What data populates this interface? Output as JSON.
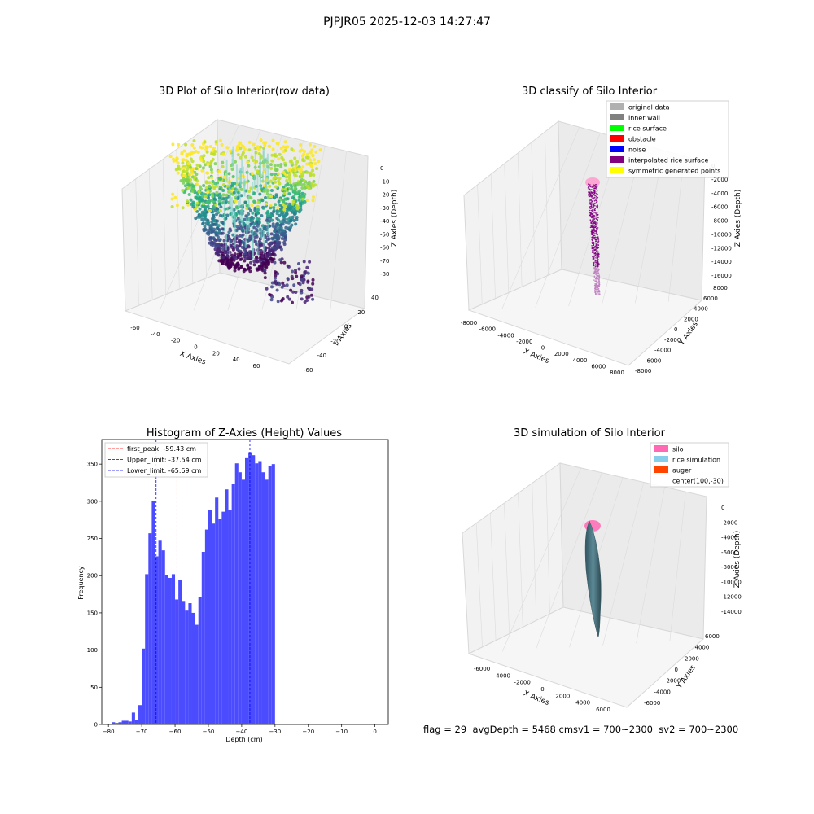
{
  "figure_title": "PJPJR05 2025-12-03 14:27:47",
  "footer": "flag = 29  avgDepth = 5468 cmsv1 = 700~2300  sv2 = 700~2300",
  "panels": {
    "p1": {
      "title": "3D Plot of Silo Interior(row data)",
      "xlabel": "X Axies",
      "ylabel": "Y Axies",
      "zlabel": "Z Axies (Depth)",
      "xticks": [
        "-60",
        "-40",
        "-20",
        "0",
        "20",
        "40",
        "60"
      ],
      "yticks": [
        "-60",
        "-40",
        "-20",
        "0",
        "20",
        "40"
      ],
      "zticks": [
        "0",
        "-10",
        "-20",
        "-30",
        "-40",
        "-50",
        "-60",
        "-70",
        "-80"
      ]
    },
    "p2": {
      "title": "3D classify of Silo Interior",
      "xlabel": "X Axies",
      "ylabel": "Y Axies",
      "zlabel": "Z Axies (Depth)",
      "xticks": [
        "-8000",
        "-6000",
        "-4000",
        "-2000",
        "0",
        "2000",
        "4000",
        "6000",
        "8000"
      ],
      "yticks": [
        "-8000",
        "-6000",
        "-4000",
        "-2000",
        "0",
        "2000",
        "4000",
        "6000",
        "8000"
      ],
      "zticks": [
        "0",
        "-2000",
        "-4000",
        "-6000",
        "-8000",
        "-10000",
        "-12000",
        "-14000",
        "-16000"
      ],
      "legend": [
        {
          "label": "original data",
          "color": "#b0b0b0"
        },
        {
          "label": "inner wall",
          "color": "#808080"
        },
        {
          "label": "rice surface",
          "color": "#00ff00"
        },
        {
          "label": "obstacle",
          "color": "#ff0000"
        },
        {
          "label": "noise",
          "color": "#0000ff"
        },
        {
          "label": "interpolated rice surface",
          "color": "#800080"
        },
        {
          "label": "symmetric generated points",
          "color": "#ffff00"
        }
      ]
    },
    "p4": {
      "title": "3D simulation of Silo Interior",
      "xlabel": "X Axies",
      "ylabel": "Y Axies",
      "zlabel": "Z Axies (Depth)",
      "xticks": [
        "-6000",
        "-4000",
        "-2000",
        "0",
        "2000",
        "4000",
        "6000"
      ],
      "yticks": [
        "-6000",
        "-4000",
        "-2000",
        "0",
        "2000",
        "4000",
        "6000"
      ],
      "zticks": [
        "0",
        "-2000",
        "-4000",
        "-6000",
        "-8000",
        "-10000",
        "-12000",
        "-14000"
      ],
      "legend": [
        {
          "label": "silo",
          "color": "#ff69b4"
        },
        {
          "label": "rice simulation",
          "color": "#87ceeb"
        },
        {
          "label": "auger",
          "color": "#ff4500"
        },
        {
          "label": "center(100,-30)",
          "color": null
        }
      ]
    }
  },
  "chart_data": {
    "type": "bar",
    "title": "Histogram of Z-Axies (Height) Values",
    "xlabel": "Depth (cm)",
    "ylabel": "Frequency",
    "xlim": [
      -82,
      4
    ],
    "ylim": [
      0,
      383
    ],
    "xticks": [
      -80,
      -70,
      -60,
      -50,
      -40,
      -30,
      -20,
      -10,
      0
    ],
    "yticks": [
      0,
      50,
      100,
      150,
      200,
      250,
      300,
      350
    ],
    "bar_color": "#4c4cff",
    "bin_start": -79,
    "bin_width": 1.0,
    "counts": [
      3,
      2,
      3,
      5,
      5,
      4,
      16,
      6,
      26,
      102,
      202,
      257,
      300,
      226,
      247,
      234,
      201,
      197,
      202,
      168,
      194,
      166,
      153,
      163,
      150,
      134,
      171,
      232,
      262,
      288,
      270,
      305,
      276,
      286,
      316,
      288,
      323,
      351,
      339,
      329,
      358,
      366,
      362,
      351,
      354,
      339,
      329,
      348,
      350
    ],
    "vlines": [
      {
        "label": "first_peak: -59.43 cm",
        "x": -59.43,
        "color": "#ff0000"
      },
      {
        "label": "Upper_limit: -37.54 cm",
        "x": -37.54,
        "color": "#0000ff"
      },
      {
        "label": "Lower_limit: -65.69 cm",
        "x": -65.69,
        "color": "#0000ff"
      }
    ]
  }
}
